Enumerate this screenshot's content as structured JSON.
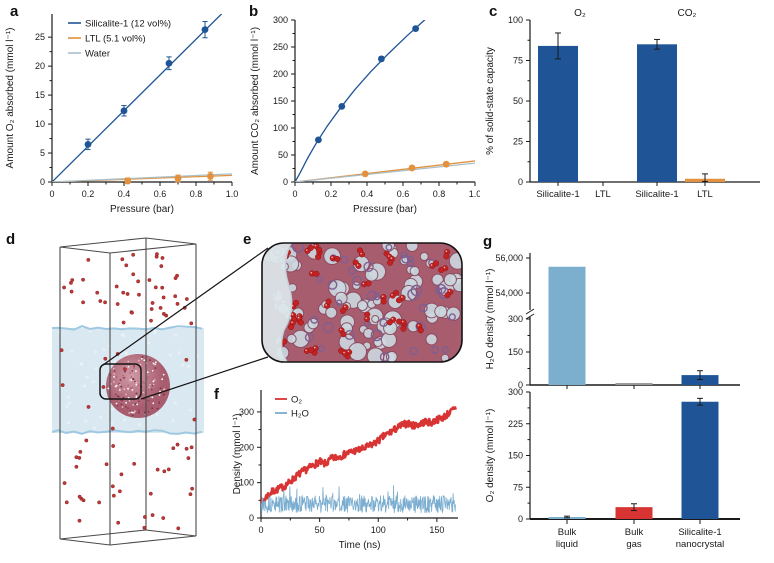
{
  "figure": {
    "panel_labels": {
      "a": "a",
      "b": "b",
      "c": "c",
      "d": "d",
      "e": "e",
      "f": "f",
      "g": "g"
    }
  },
  "colors": {
    "silicalite_blue": "#1f5596",
    "ltl_orange": "#e2923e",
    "water_line": "#a9bfc9",
    "bulk_liquid_blue": "#7cafce",
    "o2_red": "#d83434",
    "h2o_trace_blue": "#7aadd0",
    "bulk_gas_gray": "#9a9a9a",
    "axis": "#1a1a1a",
    "crystal_sphere": "#a85d6f",
    "water_slab": "#d7e6f0",
    "gas_dot_red": "#bf3636"
  },
  "panels": {
    "d": {
      "caption": "Molecular dynamics simulation box: water slab with silicalite-1 nanocrystal and O2 gas molecules"
    },
    "e": {
      "caption": "Close-up of silicalite-1 framework pores filled with O2 molecules at water interface"
    }
  },
  "art": {
    "d": {
      "gas_dots_above": 44,
      "gas_dots_below": 36,
      "gas_dots_slab": 10,
      "sphere_speckles": 150
    },
    "e": {
      "pores": 85,
      "rings": 45,
      "o2_dumbbells": 36
    }
  },
  "chart_data": [
    {
      "id": "a",
      "type": "scatter",
      "xlabel": "Pressure (bar)",
      "ylabel": "Amount O₂ absorbed (mmol l⁻¹)",
      "xlim": [
        0,
        1.0
      ],
      "ylim": [
        0,
        29
      ],
      "xticks": [
        [
          0,
          "0"
        ],
        [
          0.2,
          "0.2"
        ],
        [
          0.4,
          "0.4"
        ],
        [
          0.6,
          "0.6"
        ],
        [
          0.8,
          "0.8"
        ],
        [
          1.0,
          "1.0"
        ]
      ],
      "yticks": [
        [
          0,
          "0"
        ],
        [
          5,
          "5"
        ],
        [
          10,
          "10"
        ],
        [
          15,
          "15"
        ],
        [
          20,
          "20"
        ],
        [
          25,
          "25"
        ]
      ],
      "legend_position": "top-left",
      "series": [
        {
          "name": "Silicalite-1 (12 vol%)",
          "color_key": "silicalite_blue",
          "points": [
            [
              0.2,
              6.5
            ],
            [
              0.4,
              12.3
            ],
            [
              0.65,
              20.5
            ],
            [
              0.85,
              26.3
            ]
          ],
          "errors": [
            0.9,
            0.9,
            1.1,
            1.4
          ],
          "fit_line": [
            [
              0,
              0
            ],
            [
              1.0,
              30.8
            ]
          ]
        },
        {
          "name": "LTL (5.1 vol%)",
          "color_key": "ltl_orange",
          "points": [
            [
              0.42,
              0.2
            ],
            [
              0.7,
              0.6
            ],
            [
              0.88,
              1.0
            ]
          ],
          "errors": [
            0.5,
            0.6,
            0.7
          ],
          "fit_line": [
            [
              0,
              0
            ],
            [
              1.0,
              1.15
            ]
          ]
        },
        {
          "name": "Water",
          "color_key": "water_line",
          "points": [],
          "errors": [],
          "fit_line": [
            [
              0,
              0
            ],
            [
              1.0,
              1.4
            ]
          ]
        }
      ]
    },
    {
      "id": "b",
      "type": "scatter",
      "xlabel": "Pressure (bar)",
      "ylabel": "Amount CO₂ absorbed (mmol l⁻¹)",
      "xlim": [
        0,
        1.0
      ],
      "ylim": [
        0,
        300
      ],
      "xticks": [
        [
          0,
          "0"
        ],
        [
          0.2,
          "0.2"
        ],
        [
          0.4,
          "0.4"
        ],
        [
          0.6,
          "0.6"
        ],
        [
          0.8,
          "0.8"
        ],
        [
          1.0,
          "1.0"
        ]
      ],
      "yticks": [
        [
          0,
          "0"
        ],
        [
          50,
          "50"
        ],
        [
          100,
          "100"
        ],
        [
          150,
          "150"
        ],
        [
          200,
          "200"
        ],
        [
          250,
          "250"
        ],
        [
          300,
          "300"
        ]
      ],
      "legend_position": "none",
      "series": [
        {
          "name": "Silicalite-1 (12 vol%)",
          "color_key": "silicalite_blue",
          "points": [
            [
              0.13,
              78
            ],
            [
              0.26,
              140
            ],
            [
              0.48,
              228
            ],
            [
              0.67,
              284
            ]
          ],
          "errors": [
            3,
            3,
            4,
            4
          ],
          "fit_line": [
            [
              0,
              0
            ],
            [
              0.03,
              18
            ],
            [
              0.07,
              44
            ],
            [
              0.12,
              73
            ],
            [
              0.18,
              104
            ],
            [
              0.25,
              136
            ],
            [
              0.33,
              170
            ],
            [
              0.42,
              204
            ],
            [
              0.52,
              238
            ],
            [
              0.62,
              270
            ],
            [
              0.7,
              294
            ],
            [
              0.73,
              303
            ]
          ]
        },
        {
          "name": "LTL (5.1 vol%)",
          "color_key": "ltl_orange",
          "points": [
            [
              0.39,
              15
            ],
            [
              0.65,
              26
            ],
            [
              0.84,
              33
            ]
          ],
          "errors": [
            2,
            2,
            2
          ],
          "fit_line": [
            [
              0,
              0
            ],
            [
              1.0,
              39
            ]
          ]
        },
        {
          "name": "Water",
          "color_key": "water_line",
          "points": [],
          "errors": [],
          "fit_line": [
            [
              0,
              0
            ],
            [
              1.0,
              35
            ]
          ]
        }
      ]
    },
    {
      "id": "c",
      "type": "bar",
      "ylabel": "% of solid-state capacity",
      "ylim": [
        0,
        100
      ],
      "yticks": [
        [
          0,
          "0"
        ],
        [
          25,
          "25"
        ],
        [
          50,
          "50"
        ],
        [
          75,
          "75"
        ],
        [
          100,
          "100"
        ]
      ],
      "group_labels": [
        "O₂",
        "CO₂"
      ],
      "bars": [
        {
          "label": "Silicalite-1",
          "value": 84,
          "error": 8,
          "color_key": "silicalite_blue"
        },
        {
          "label": "LTL",
          "value": 0,
          "error": 0,
          "color_key": "silicalite_blue"
        },
        {
          "label": "Silicalite-1",
          "value": 85,
          "error": 3,
          "color_key": "silicalite_blue"
        },
        {
          "label": "LTL",
          "value": 2,
          "error": 3,
          "color_key": "ltl_orange"
        }
      ]
    },
    {
      "id": "f",
      "type": "line",
      "xlabel": "Time (ns)",
      "ylabel": "Density (mmol l⁻¹)",
      "xlim": [
        0,
        168
      ],
      "ylim": [
        0,
        362
      ],
      "xticks": [
        [
          0,
          "0"
        ],
        [
          50,
          "50"
        ],
        [
          100,
          "100"
        ],
        [
          150,
          "150"
        ]
      ],
      "yticks": [
        [
          0,
          "0"
        ],
        [
          100,
          "100"
        ],
        [
          200,
          "200"
        ],
        [
          300,
          "300"
        ]
      ],
      "legend_position": "top-left",
      "series": [
        {
          "name": "O₂",
          "color_key": "o2_red",
          "noise": 20,
          "base": [
            [
              0,
              40
            ],
            [
              5,
              62
            ],
            [
              10,
              75
            ],
            [
              15,
              82
            ],
            [
              20,
              90
            ],
            [
              25,
              103
            ],
            [
              30,
              118
            ],
            [
              35,
              130
            ],
            [
              40,
              140
            ],
            [
              45,
              150
            ],
            [
              50,
              160
            ],
            [
              53,
              152
            ],
            [
              57,
              158
            ],
            [
              60,
              168
            ],
            [
              65,
              172
            ],
            [
              70,
              178
            ],
            [
              75,
              185
            ],
            [
              80,
              190
            ],
            [
              85,
              193
            ],
            [
              90,
              200
            ],
            [
              95,
              208
            ],
            [
              100,
              218
            ],
            [
              105,
              232
            ],
            [
              110,
              242
            ],
            [
              115,
              252
            ],
            [
              120,
              262
            ],
            [
              125,
              268
            ],
            [
              130,
              261
            ],
            [
              135,
              266
            ],
            [
              140,
              272
            ],
            [
              145,
              269
            ],
            [
              150,
              278
            ],
            [
              155,
              284
            ],
            [
              160,
              296
            ],
            [
              166,
              310
            ]
          ]
        },
        {
          "name": "H₂O",
          "color_key": "h2o_trace_blue",
          "noise": 50,
          "base": [
            [
              0,
              40
            ],
            [
              166,
              40
            ]
          ]
        }
      ]
    },
    {
      "id": "g_top",
      "type": "bar-broken-axis",
      "ylabel": "H₂O density (mmol l⁻¹)",
      "lower_ylim": [
        0,
        300
      ],
      "lower_yticks": [
        [
          0,
          "0"
        ],
        [
          150,
          "150"
        ],
        [
          300,
          "300"
        ]
      ],
      "upper_ylim": [
        54000,
        56000
      ],
      "upper_yticks": [
        [
          54000,
          "54,000"
        ],
        [
          56000,
          "56,000"
        ]
      ],
      "bars": [
        {
          "label": "Bulk liquid",
          "value": 55500,
          "error": 0,
          "color_key": "bulk_liquid_blue"
        },
        {
          "label": "Bulk gas",
          "value": 3,
          "error": 0,
          "color_key": "bulk_gas_gray"
        },
        {
          "label": "Silicalite-1 nanocrystal",
          "value": 45,
          "error": 20,
          "color_key": "silicalite_blue"
        }
      ]
    },
    {
      "id": "g_bottom",
      "type": "bar",
      "ylabel": "O₂ density (mmol l⁻¹)",
      "ylim": [
        0,
        300
      ],
      "yticks": [
        [
          0,
          "0"
        ],
        [
          75,
          "75"
        ],
        [
          150,
          "150"
        ],
        [
          225,
          "225"
        ],
        [
          300,
          "300"
        ]
      ],
      "categories": [
        [
          "Bulk",
          "liquid"
        ],
        [
          "Bulk",
          "gas"
        ],
        [
          "Silicalite-1",
          "nanocrystal"
        ]
      ],
      "bars": [
        {
          "value": 2,
          "error": 2,
          "color_key": "bulk_liquid_blue"
        },
        {
          "value": 28,
          "error": 8,
          "color_key": "o2_red"
        },
        {
          "value": 277,
          "error": 8,
          "color_key": "silicalite_blue"
        }
      ]
    }
  ]
}
